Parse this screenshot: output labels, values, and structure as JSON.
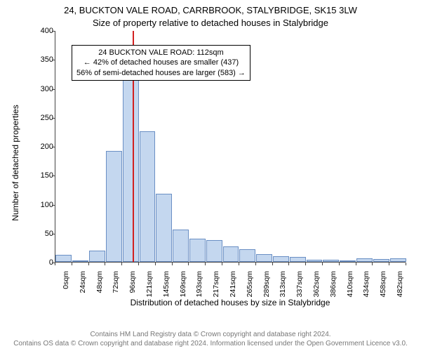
{
  "title": {
    "line1": "24, BUCKTON VALE ROAD, CARRBROOK, STALYBRIDGE, SK15 3LW",
    "line2": "Size of property relative to detached houses in Stalybridge"
  },
  "chart": {
    "type": "histogram",
    "ylabel": "Number of detached properties",
    "xlabel": "Distribution of detached houses by size in Stalybridge",
    "ylim": [
      0,
      400
    ],
    "ytick_step": 50,
    "yticks": [
      0,
      50,
      100,
      150,
      200,
      250,
      300,
      350,
      400
    ],
    "bar_fill": "#c4d7ef",
    "bar_stroke": "#6a8fc4",
    "background_color": "#ffffff",
    "axis_color": "#444444",
    "label_fontsize": 12,
    "tick_fontsize": 11,
    "bars": [
      {
        "label": "0sqm",
        "value": 12
      },
      {
        "label": "24sqm",
        "value": 2
      },
      {
        "label": "48sqm",
        "value": 20
      },
      {
        "label": "72sqm",
        "value": 192
      },
      {
        "label": "96sqm",
        "value": 318
      },
      {
        "label": "121sqm",
        "value": 225
      },
      {
        "label": "145sqm",
        "value": 117
      },
      {
        "label": "169sqm",
        "value": 56
      },
      {
        "label": "193sqm",
        "value": 40
      },
      {
        "label": "217sqm",
        "value": 38
      },
      {
        "label": "241sqm",
        "value": 27
      },
      {
        "label": "265sqm",
        "value": 22
      },
      {
        "label": "289sqm",
        "value": 13
      },
      {
        "label": "313sqm",
        "value": 10
      },
      {
        "label": "337sqm",
        "value": 9
      },
      {
        "label": "362sqm",
        "value": 4
      },
      {
        "label": "386sqm",
        "value": 4
      },
      {
        "label": "410sqm",
        "value": 3
      },
      {
        "label": "434sqm",
        "value": 6
      },
      {
        "label": "458sqm",
        "value": 5
      },
      {
        "label": "482sqm",
        "value": 6
      }
    ],
    "reference_line": {
      "value_sqm": 112,
      "color": "#d22020"
    },
    "annotation": {
      "line1": "24 BUCKTON VALE ROAD: 112sqm",
      "line2": "← 42% of detached houses are smaller (437)",
      "line3": "56% of semi-detached houses are larger (583) →",
      "border_color": "#000000",
      "background": "#ffffff",
      "fontsize": 11
    }
  },
  "footer": {
    "line1": "Contains HM Land Registry data © Crown copyright and database right 2024.",
    "line2": "Contains OS data © Crown copyright and database right 2024. Information licensed under the Open Government Licence v3.0."
  }
}
